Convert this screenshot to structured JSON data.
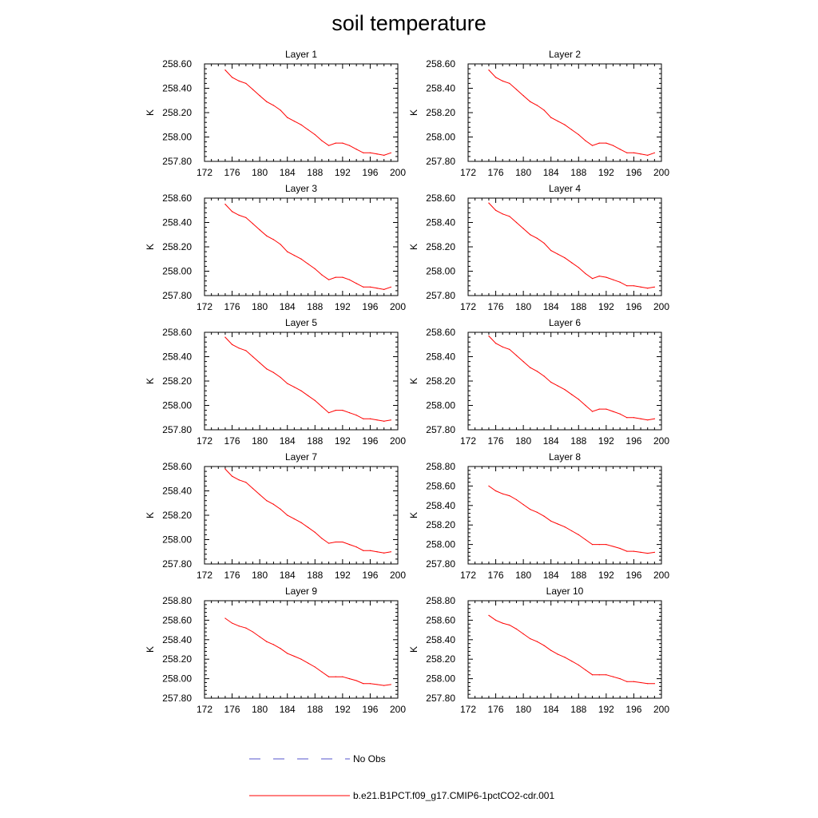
{
  "title": "soil temperature",
  "chart_data": {
    "type": "line",
    "x_ticks": [
      172,
      176,
      180,
      184,
      188,
      192,
      196,
      200
    ],
    "xlim": [
      172,
      200
    ],
    "ylabel": "K",
    "legend": [
      {
        "label": "No Obs",
        "color": "#5555cc",
        "dash": true
      },
      {
        "label": "b.e21.B1PCT.f09_g17.CMIP6-1pctCO2-cdr.001",
        "color": "#ff0000",
        "dash": false
      }
    ],
    "panels": [
      {
        "title": "Layer 1",
        "ylim": [
          257.8,
          258.6
        ],
        "y_ticks": [
          "258.60",
          "258.40",
          "258.20",
          "258.00",
          "257.80"
        ],
        "x": [
          175,
          176,
          177,
          178,
          179,
          180,
          181,
          182,
          183,
          184,
          185,
          186,
          187,
          188,
          189,
          190,
          191,
          192,
          193,
          194,
          195,
          196,
          197,
          198,
          199
        ],
        "y": [
          258.55,
          258.49,
          258.46,
          258.44,
          258.39,
          258.34,
          258.29,
          258.26,
          258.22,
          258.16,
          258.13,
          258.1,
          258.06,
          258.02,
          257.97,
          257.93,
          257.95,
          257.95,
          257.93,
          257.9,
          257.87,
          257.87,
          257.86,
          257.85,
          257.87
        ]
      },
      {
        "title": "Layer 2",
        "ylim": [
          257.8,
          258.6
        ],
        "y_ticks": [
          "258.60",
          "258.40",
          "258.20",
          "258.00",
          "257.80"
        ],
        "x": [
          175,
          176,
          177,
          178,
          179,
          180,
          181,
          182,
          183,
          184,
          185,
          186,
          187,
          188,
          189,
          190,
          191,
          192,
          193,
          194,
          195,
          196,
          197,
          198,
          199
        ],
        "y": [
          258.55,
          258.49,
          258.46,
          258.44,
          258.39,
          258.34,
          258.29,
          258.26,
          258.22,
          258.16,
          258.13,
          258.1,
          258.06,
          258.02,
          257.97,
          257.93,
          257.95,
          257.95,
          257.93,
          257.9,
          257.87,
          257.87,
          257.86,
          257.85,
          257.87
        ]
      },
      {
        "title": "Layer 3",
        "ylim": [
          257.8,
          258.6
        ],
        "y_ticks": [
          "258.60",
          "258.40",
          "258.20",
          "258.00",
          "257.80"
        ],
        "x": [
          175,
          176,
          177,
          178,
          179,
          180,
          181,
          182,
          183,
          184,
          185,
          186,
          187,
          188,
          189,
          190,
          191,
          192,
          193,
          194,
          195,
          196,
          197,
          198,
          199
        ],
        "y": [
          258.55,
          258.49,
          258.46,
          258.44,
          258.39,
          258.34,
          258.29,
          258.26,
          258.22,
          258.16,
          258.13,
          258.1,
          258.06,
          258.02,
          257.97,
          257.93,
          257.95,
          257.95,
          257.93,
          257.9,
          257.87,
          257.87,
          257.86,
          257.85,
          257.87
        ]
      },
      {
        "title": "Layer 4",
        "ylim": [
          257.8,
          258.6
        ],
        "y_ticks": [
          "258.60",
          "258.40",
          "258.20",
          "258.00",
          "257.80"
        ],
        "x": [
          175,
          176,
          177,
          178,
          179,
          180,
          181,
          182,
          183,
          184,
          185,
          186,
          187,
          188,
          189,
          190,
          191,
          192,
          193,
          194,
          195,
          196,
          197,
          198,
          199
        ],
        "y": [
          258.56,
          258.5,
          258.47,
          258.45,
          258.4,
          258.35,
          258.3,
          258.27,
          258.23,
          258.17,
          258.14,
          258.11,
          258.07,
          258.03,
          257.98,
          257.94,
          257.96,
          257.95,
          257.93,
          257.91,
          257.88,
          257.88,
          257.87,
          257.86,
          257.87
        ]
      },
      {
        "title": "Layer 5",
        "ylim": [
          257.8,
          258.6
        ],
        "y_ticks": [
          "258.60",
          "258.40",
          "258.20",
          "258.00",
          "257.80"
        ],
        "x": [
          175,
          176,
          177,
          178,
          179,
          180,
          181,
          182,
          183,
          184,
          185,
          186,
          187,
          188,
          189,
          190,
          191,
          192,
          193,
          194,
          195,
          196,
          197,
          198,
          199
        ],
        "y": [
          258.56,
          258.5,
          258.47,
          258.45,
          258.4,
          258.35,
          258.3,
          258.27,
          258.23,
          258.18,
          258.15,
          258.12,
          258.08,
          258.04,
          257.99,
          257.94,
          257.96,
          257.96,
          257.94,
          257.92,
          257.89,
          257.89,
          257.88,
          257.87,
          257.88
        ]
      },
      {
        "title": "Layer 6",
        "ylim": [
          257.8,
          258.6
        ],
        "y_ticks": [
          "258.60",
          "258.40",
          "258.20",
          "258.00",
          "257.80"
        ],
        "x": [
          175,
          176,
          177,
          178,
          179,
          180,
          181,
          182,
          183,
          184,
          185,
          186,
          187,
          188,
          189,
          190,
          191,
          192,
          193,
          194,
          195,
          196,
          197,
          198,
          199
        ],
        "y": [
          258.57,
          258.51,
          258.48,
          258.46,
          258.41,
          258.36,
          258.31,
          258.28,
          258.24,
          258.19,
          258.16,
          258.13,
          258.09,
          258.05,
          258.0,
          257.95,
          257.97,
          257.97,
          257.95,
          257.93,
          257.9,
          257.9,
          257.89,
          257.88,
          257.89
        ]
      },
      {
        "title": "Layer 7",
        "ylim": [
          257.8,
          258.6
        ],
        "y_ticks": [
          "258.60",
          "258.40",
          "258.20",
          "258.00",
          "257.80"
        ],
        "x": [
          175,
          176,
          177,
          178,
          179,
          180,
          181,
          182,
          183,
          184,
          185,
          186,
          187,
          188,
          189,
          190,
          191,
          192,
          193,
          194,
          195,
          196,
          197,
          198,
          199
        ],
        "y": [
          258.58,
          258.52,
          258.49,
          258.47,
          258.42,
          258.37,
          258.32,
          258.29,
          258.25,
          258.2,
          258.17,
          258.14,
          258.1,
          258.06,
          258.01,
          257.97,
          257.98,
          257.98,
          257.96,
          257.94,
          257.91,
          257.91,
          257.9,
          257.89,
          257.9
        ]
      },
      {
        "title": "Layer 8",
        "ylim": [
          257.8,
          258.8
        ],
        "y_ticks": [
          "258.80",
          "258.60",
          "258.40",
          "258.20",
          "258.00",
          "257.80"
        ],
        "x": [
          175,
          176,
          177,
          178,
          179,
          180,
          181,
          182,
          183,
          184,
          185,
          186,
          187,
          188,
          189,
          190,
          191,
          192,
          193,
          194,
          195,
          196,
          197,
          198,
          199
        ],
        "y": [
          258.6,
          258.55,
          258.52,
          258.5,
          258.46,
          258.41,
          258.36,
          258.33,
          258.29,
          258.24,
          258.21,
          258.18,
          258.14,
          258.1,
          258.05,
          258.0,
          258.0,
          258.0,
          257.98,
          257.96,
          257.93,
          257.93,
          257.92,
          257.91,
          257.92
        ]
      },
      {
        "title": "Layer 9",
        "ylim": [
          257.8,
          258.8
        ],
        "y_ticks": [
          "258.80",
          "258.60",
          "258.40",
          "258.20",
          "258.00",
          "257.80"
        ],
        "x": [
          175,
          176,
          177,
          178,
          179,
          180,
          181,
          182,
          183,
          184,
          185,
          186,
          187,
          188,
          189,
          190,
          191,
          192,
          193,
          194,
          195,
          196,
          197,
          198,
          199
        ],
        "y": [
          258.62,
          258.57,
          258.54,
          258.52,
          258.48,
          258.43,
          258.38,
          258.35,
          258.31,
          258.26,
          258.23,
          258.2,
          258.16,
          258.12,
          258.07,
          258.02,
          258.02,
          258.02,
          258.0,
          257.98,
          257.95,
          257.95,
          257.94,
          257.93,
          257.94
        ]
      },
      {
        "title": "Layer 10",
        "ylim": [
          257.8,
          258.8
        ],
        "y_ticks": [
          "258.80",
          "258.60",
          "258.40",
          "258.20",
          "258.00",
          "257.80"
        ],
        "x": [
          175,
          176,
          177,
          178,
          179,
          180,
          181,
          182,
          183,
          184,
          185,
          186,
          187,
          188,
          189,
          190,
          191,
          192,
          193,
          194,
          195,
          196,
          197,
          198,
          199
        ],
        "y": [
          258.65,
          258.6,
          258.57,
          258.55,
          258.51,
          258.46,
          258.41,
          258.38,
          258.34,
          258.29,
          258.25,
          258.22,
          258.18,
          258.14,
          258.09,
          258.04,
          258.04,
          258.04,
          258.02,
          258.0,
          257.97,
          257.97,
          257.96,
          257.95,
          257.95
        ]
      }
    ]
  }
}
